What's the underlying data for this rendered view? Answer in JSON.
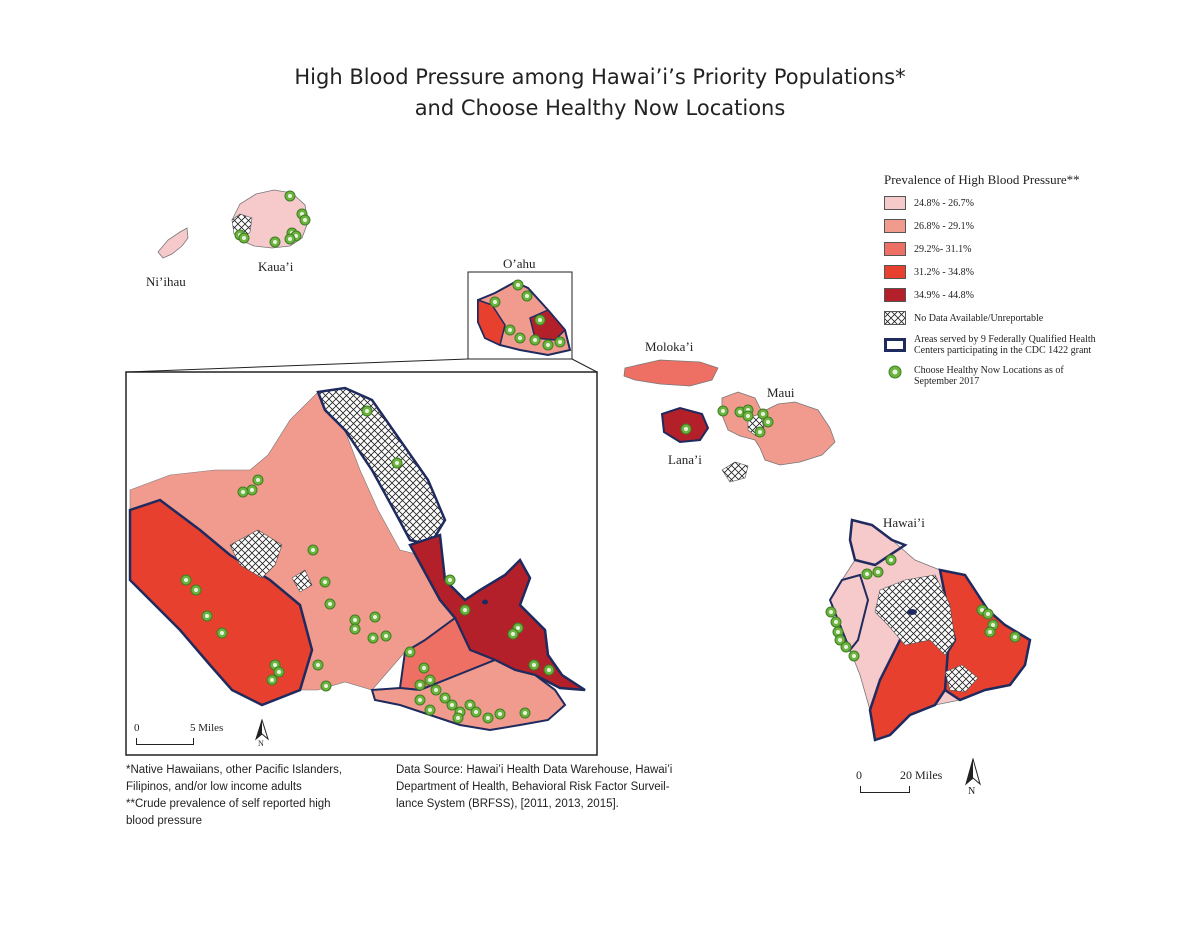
{
  "title_line1": "High Blood Pressure among Hawai’i’s Priority Populations*",
  "title_line2": "and Choose Healthy Now Locations",
  "colors": {
    "class1": "#f6c9cb",
    "class2": "#f19b8e",
    "class3": "#ee7064",
    "class4": "#e8402e",
    "class5": "#b3202a",
    "fqhc_outline": "#1f2a5e",
    "location_fill": "#6db33f"
  },
  "island_labels": {
    "niihau": "Ni’ihau",
    "kauai": "Kaua’i",
    "oahu": "O’ahu",
    "molokai": "Moloka’i",
    "maui": "Maui",
    "lanai": "Lana’i",
    "hawaii": "Hawai’i"
  },
  "legend": {
    "title": "Prevalence of High Blood Pressure**",
    "classes": [
      {
        "label": "24.8% - 26.7%",
        "color": "#f6c9cb"
      },
      {
        "label": "26.8% - 29.1%",
        "color": "#f19b8e"
      },
      {
        "label": "29.2%- 31.1%",
        "color": "#ee7064"
      },
      {
        "label": "31.2% - 34.8%",
        "color": "#e8402e"
      },
      {
        "label": "34.9% - 44.8%",
        "color": "#b3202a"
      }
    ],
    "no_data": "No Data Available/Unreportable",
    "fqhc": "Areas served by 9 Federally Qualified Health Centers participating in the CDC 1422 grant",
    "locations": "Choose Healthy Now Locations as of September 2017"
  },
  "inset_scale": {
    "zero": "0",
    "label": "5 Miles",
    "north": "N"
  },
  "main_scale": {
    "zero": "0",
    "label": "20 Miles",
    "north": "N"
  },
  "footnote": {
    "line1": "*Native Hawaiians, other Pacific Islanders,",
    "line2": "Filipinos, and/or low income adults",
    "line3": "**Crude prevalence of self reported high",
    "line4": "blood pressure"
  },
  "source": {
    "line1": "Data Source: Hawai’i Health Data Warehouse, Hawai’i",
    "line2": "Department of Health, Behavioral Risk Factor Surveil-",
    "line3": "lance System (BRFSS), [2011, 2013, 2015]."
  }
}
